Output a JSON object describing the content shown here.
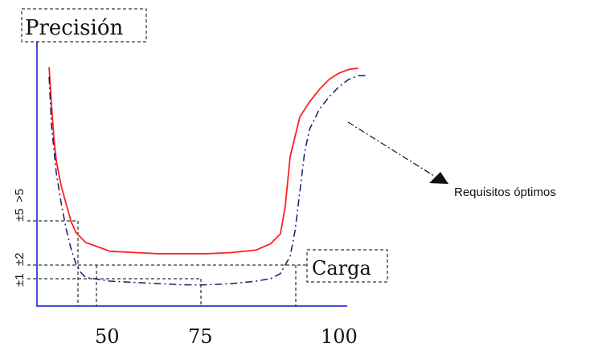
{
  "chart_data": {
    "type": "line",
    "title": "Precisión",
    "xlabel": "Carga",
    "ylabel": "Precisión",
    "x_tick_labels": [
      "50",
      "75",
      "100"
    ],
    "y_tick_labels": [
      "±1",
      "±2",
      "±5",
      ">5"
    ],
    "annotation": "Requisitos óptimos",
    "xlim": [
      40,
      110
    ],
    "ylim": [
      0,
      10
    ],
    "grid": false,
    "series": [
      {
        "color": "#ff2020",
        "style": "solid",
        "x": [
          42.5,
          43,
          43.5,
          44,
          45,
          46,
          47,
          48,
          50,
          55,
          60,
          65,
          70,
          75,
          80,
          85,
          88,
          90,
          91,
          92,
          94,
          96,
          98,
          100,
          102,
          104,
          106
        ],
        "y": [
          9.6,
          8.0,
          6.7,
          5.8,
          4.8,
          4.1,
          3.4,
          2.95,
          2.55,
          2.2,
          2.15,
          2.1,
          2.1,
          2.1,
          2.15,
          2.25,
          2.5,
          2.9,
          4.0,
          6.0,
          7.6,
          8.2,
          8.7,
          9.1,
          9.35,
          9.5,
          9.55
        ]
      },
      {
        "color": "#1a1a66",
        "style": "dashdot",
        "x": [
          42.5,
          43,
          44,
          45,
          46,
          47,
          48,
          49,
          50,
          55,
          60,
          65,
          70,
          75,
          80,
          85,
          88,
          90,
          92,
          93,
          94,
          95,
          96,
          98,
          100,
          102,
          104,
          106,
          108
        ],
        "y": [
          9.2,
          7.2,
          5.3,
          4.1,
          3.1,
          2.3,
          1.7,
          1.35,
          1.15,
          1.0,
          0.95,
          0.9,
          0.85,
          0.85,
          0.9,
          1.0,
          1.1,
          1.3,
          2.0,
          3.0,
          4.6,
          6.2,
          7.1,
          7.9,
          8.4,
          8.8,
          9.1,
          9.25,
          9.25
        ]
      }
    ]
  }
}
